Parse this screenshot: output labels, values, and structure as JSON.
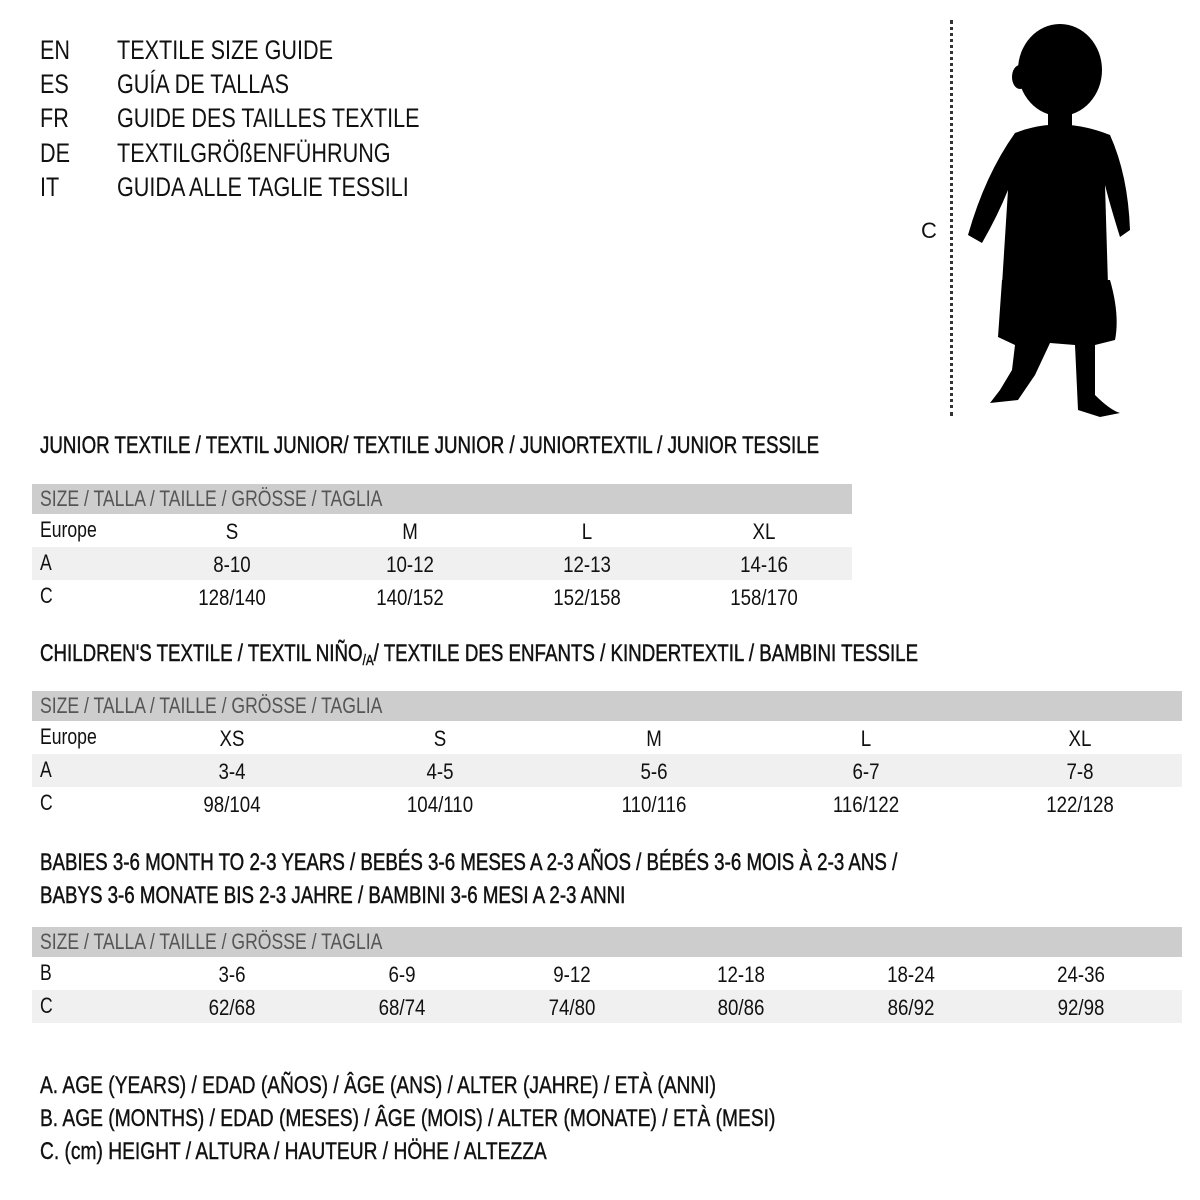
{
  "titles": [
    {
      "code": "EN",
      "text": "TEXTILE SIZE GUIDE"
    },
    {
      "code": "ES",
      "text": "GUÍA DE TALLAS"
    },
    {
      "code": "FR",
      "text": "GUIDE DES TAILLES TEXTILE"
    },
    {
      "code": "DE",
      "text": "TEXTILGRÖßENFÜHRUNG"
    },
    {
      "code": "IT",
      "text": "GUIDA ALLE TAGLIE TESSILI"
    }
  ],
  "figure": {
    "measure_label": "C"
  },
  "junior": {
    "heading": "JUNIOR TEXTILE / TEXTIL JUNIOR/ TEXTILE JUNIOR / JUNIORTEXTIL / JUNIOR TESSILE",
    "header": "SIZE / TALLA / TAILLE / GRÖSSE / TAGLIA",
    "rows": [
      {
        "label": "Europe",
        "cells": [
          "S",
          "M",
          "L",
          "XL"
        ]
      },
      {
        "label": "A",
        "cells": [
          "8-10",
          "10-12",
          "12-13",
          "14-16"
        ]
      },
      {
        "label": "C",
        "cells": [
          "128/140",
          "140/152",
          "152/158",
          "158/170"
        ]
      }
    ]
  },
  "children": {
    "heading_pre": "CHILDREN'S TEXTILE / TEXTIL NIÑO",
    "heading_sub": "/A",
    "heading_post": " / TEXTILE DES ENFANTS / KINDERTEXTIL / BAMBINI TESSILE",
    "header": "SIZE / TALLA / TAILLE / GRÖSSE / TAGLIA",
    "rows": [
      {
        "label": "Europe",
        "cells": [
          "XS",
          "S",
          "M",
          "L",
          "XL"
        ]
      },
      {
        "label": "A",
        "cells": [
          "3-4",
          "4-5",
          "5-6",
          "6-7",
          "7-8"
        ]
      },
      {
        "label": "C",
        "cells": [
          "98/104",
          "104/110",
          "110/116",
          "116/122",
          "122/128"
        ]
      }
    ]
  },
  "babies": {
    "heading_line1": "BABIES 3-6 MONTH TO 2-3 YEARS / BEBÉS 3-6 MESES A 2-3 AÑOS / BÉBÉS 3-6 MOIS À 2-3 ANS /",
    "heading_line2": "BABYS 3-6 MONATE BIS 2-3 JAHRE / BAMBINI 3-6 MESI A 2-3 ANNI",
    "header": "SIZE / TALLA / TAILLE / GRÖSSE / TAGLIA",
    "rows": [
      {
        "label": "B",
        "cells": [
          "3-6",
          "6-9",
          "9-12",
          "12-18",
          "18-24",
          "24-36"
        ]
      },
      {
        "label": "C",
        "cells": [
          "62/68",
          "68/74",
          "74/80",
          "80/86",
          "86/92",
          "92/98"
        ]
      }
    ]
  },
  "legend": [
    "A. AGE (YEARS) / EDAD (AÑOS) / ÂGE (ANS) / ALTER (JAHRE) / ETÀ (ANNI)",
    "B. AGE (MONTHS) / EDAD (MESES) / ÂGE (MOIS) / ALTER (MONATE) / ETÀ (MESI)",
    "C. (cm) HEIGHT / ALTURA / HAUTEUR / HÖHE / ALTEZZA"
  ]
}
